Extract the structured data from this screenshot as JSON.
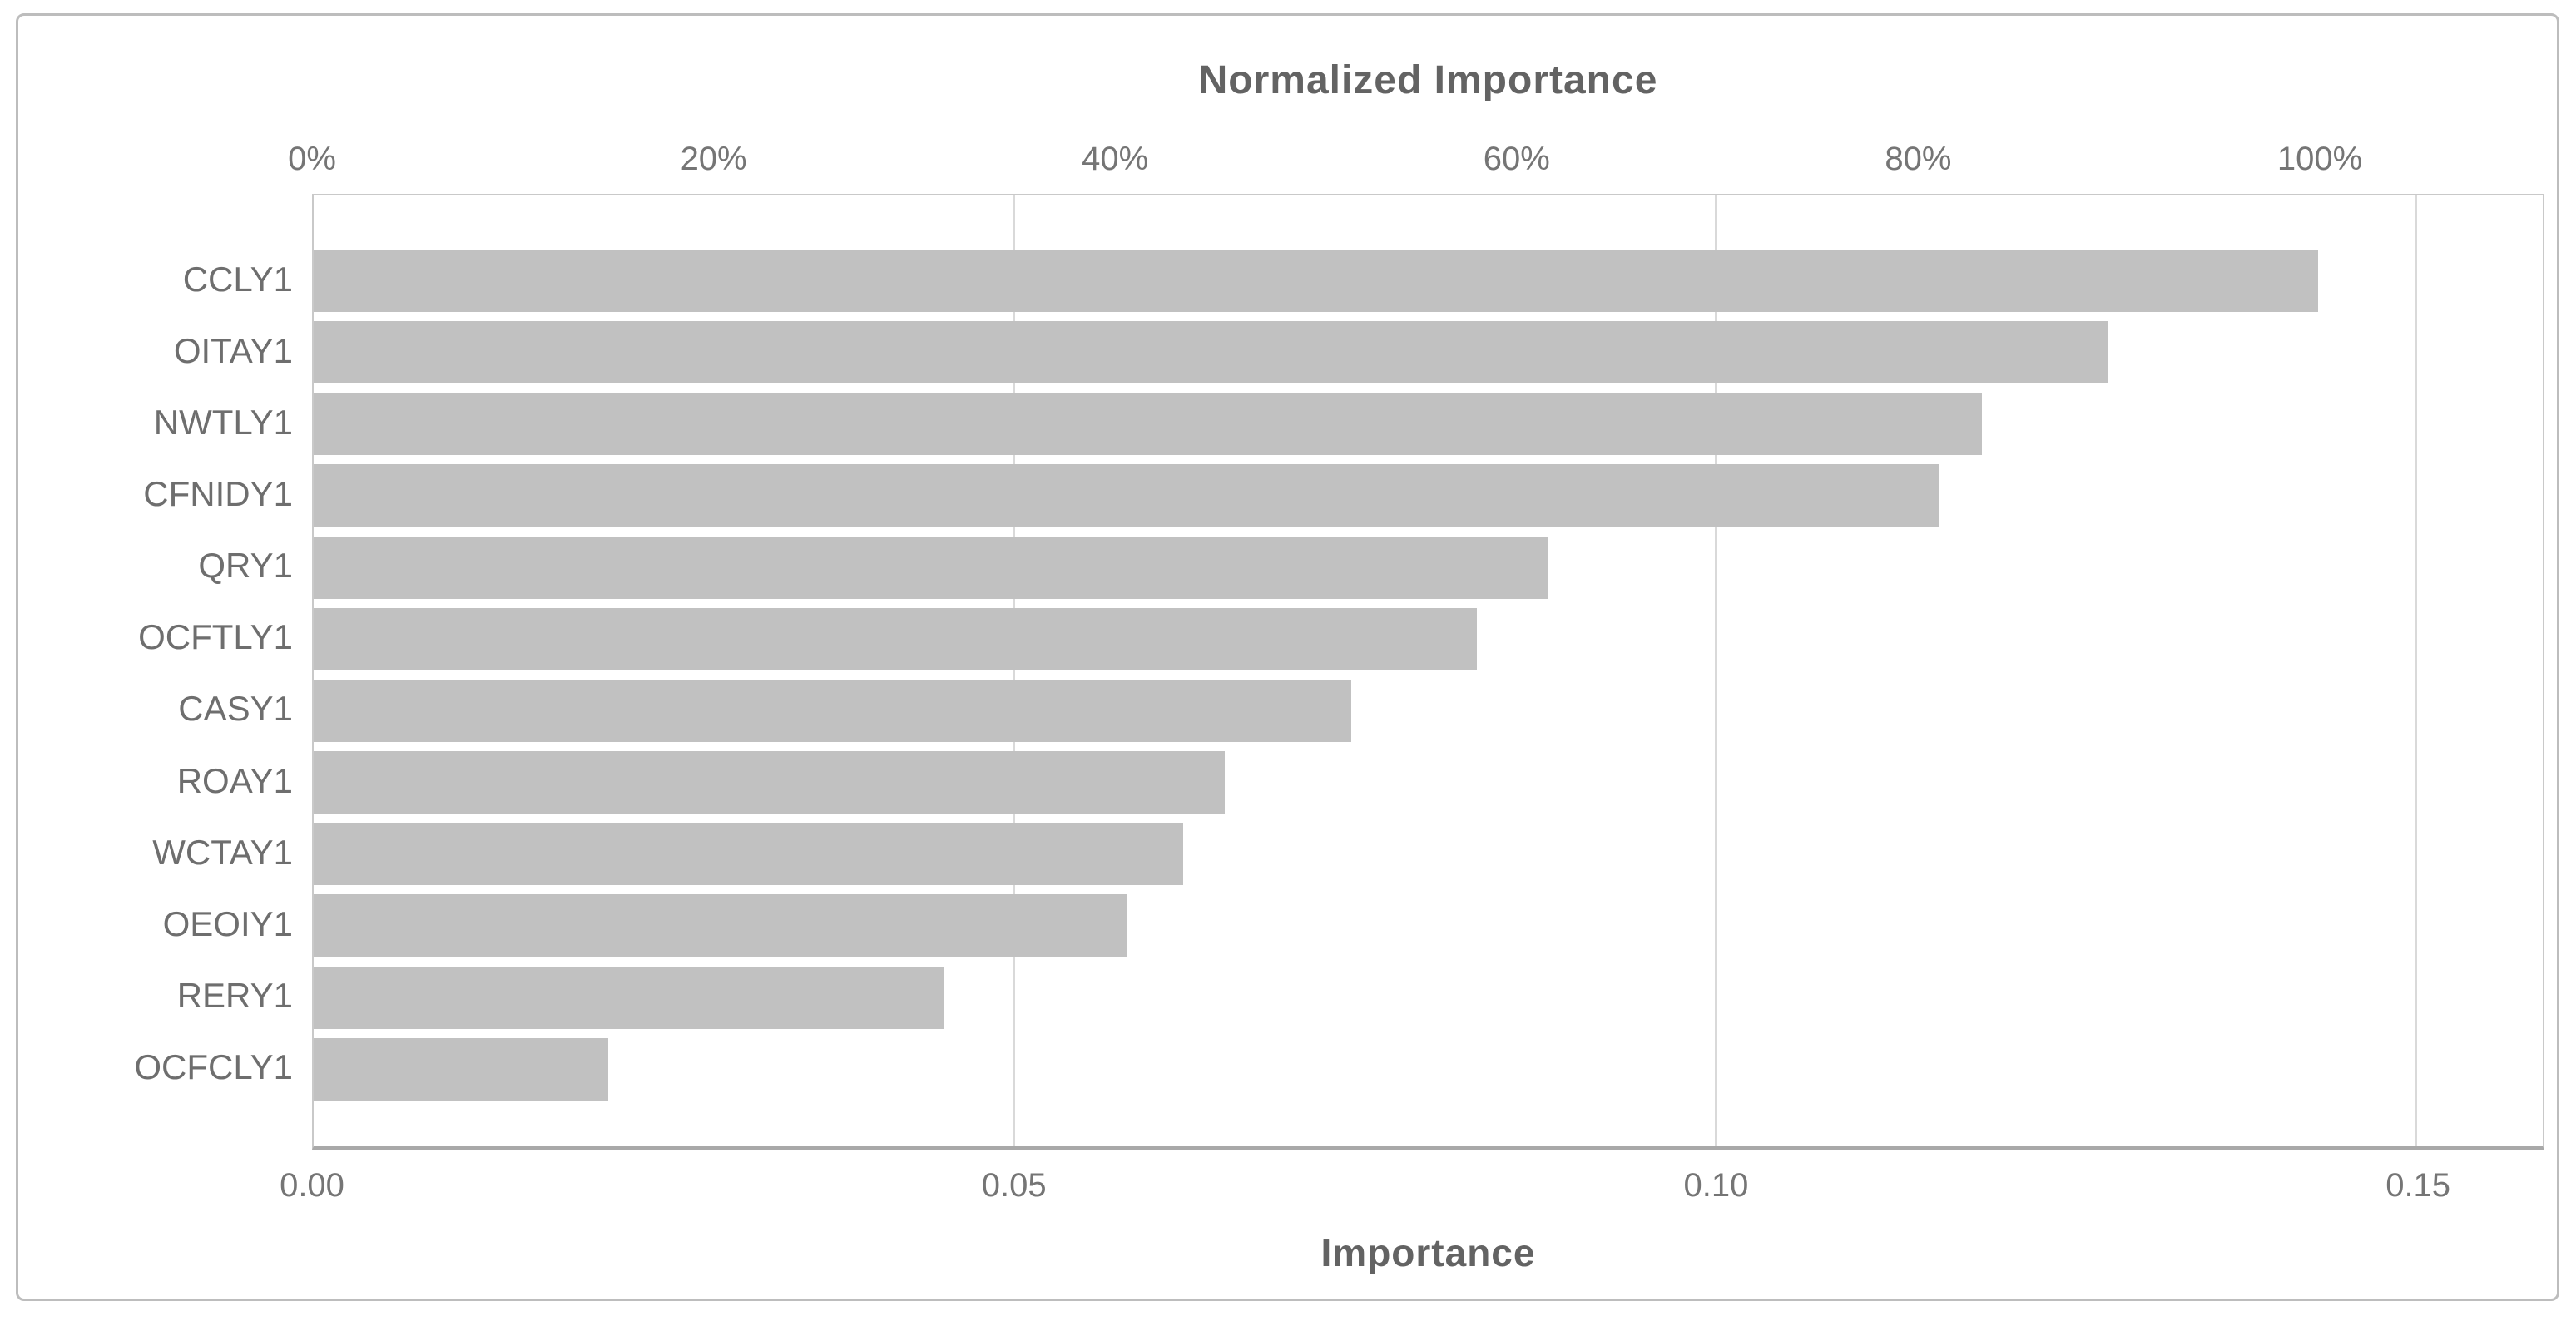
{
  "chart_data": {
    "type": "bar",
    "orientation": "horizontal",
    "title": "Normalized Importance",
    "xlabel": "Importance",
    "categories": [
      "CCLY1",
      "OITAY1",
      "NWTLY1",
      "CFNIDY1",
      "QRY1",
      "OCFTLY1",
      "CASY1",
      "ROAY1",
      "WCTAY1",
      "OEOIY1",
      "RERY1",
      "OCFCLY1"
    ],
    "series": [
      {
        "name": "Importance",
        "values": [
          0.143,
          0.128,
          0.119,
          0.116,
          0.088,
          0.083,
          0.074,
          0.065,
          0.062,
          0.058,
          0.045,
          0.021
        ]
      },
      {
        "name": "Normalized Importance (%)",
        "values": [
          100,
          89.6,
          83.3,
          81.0,
          61.1,
          58.3,
          51.3,
          45.2,
          43.0,
          40.4,
          31.1,
          14.8
        ]
      }
    ],
    "top_axis": {
      "title": "Normalized Importance",
      "tick_labels": [
        "0%",
        "20%",
        "40%",
        "60%",
        "80%",
        "100%"
      ],
      "tick_values_pct": [
        0,
        20,
        40,
        60,
        80,
        100
      ],
      "max_importance_at_100pct": 0.143
    },
    "bottom_axis": {
      "title": "Importance",
      "tick_labels": [
        "0.00",
        "0.05",
        "0.10",
        "0.15"
      ],
      "tick_values": [
        0.0,
        0.05,
        0.1,
        0.15
      ]
    },
    "xlim": [
      0,
      0.159
    ],
    "grid": {
      "vertical_gridlines_at": [
        0.05,
        0.1,
        0.15
      ],
      "drawn_below_bars": true
    },
    "legend": "none",
    "colors": {
      "bar": "#c1c1c1",
      "gridline": "#d9d9d9",
      "tick_text": "#757575",
      "category_text": "#6e6e6e",
      "title_text": "#636363",
      "plot_border": "#c9c9c9",
      "axis_line": "#a9a9a9",
      "frame_border": "#bdbdbd",
      "background": "#ffffff"
    }
  }
}
